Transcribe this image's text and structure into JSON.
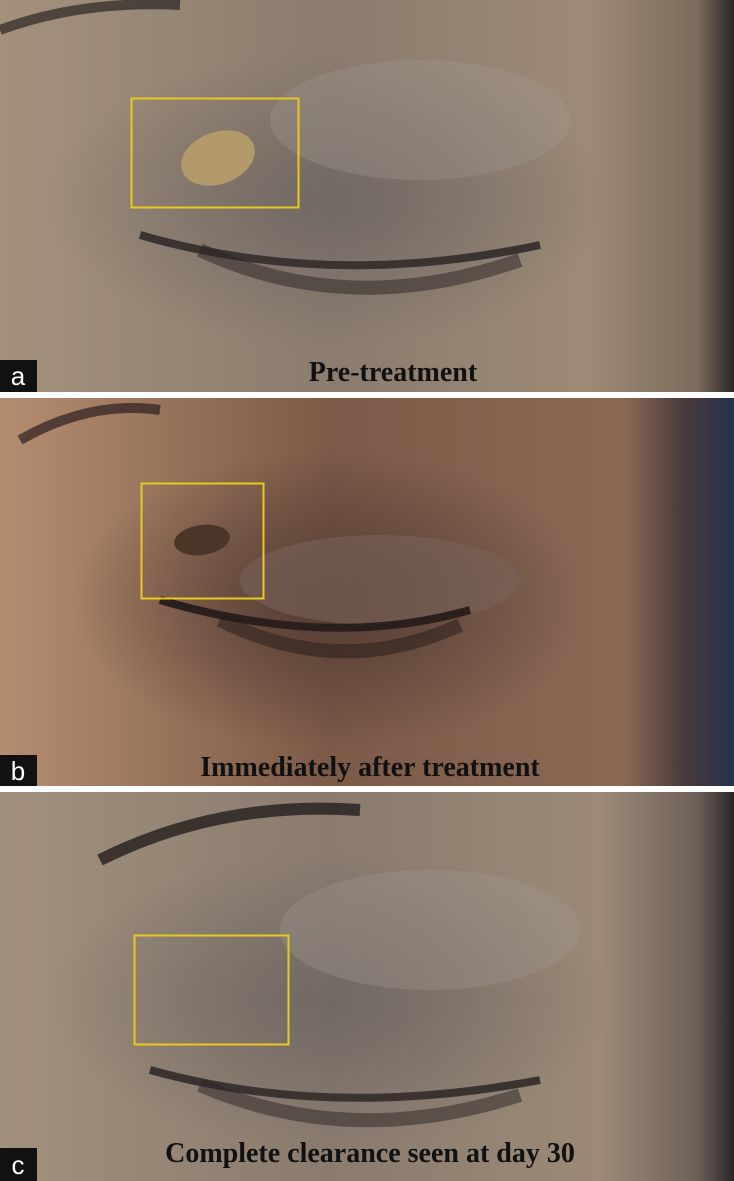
{
  "panels": [
    {
      "label": "a",
      "caption": "Pre-treatment"
    },
    {
      "label": "b",
      "caption": "Immediately after treatment"
    },
    {
      "label": "c",
      "caption": "Complete clearance seen at day 30"
    }
  ]
}
